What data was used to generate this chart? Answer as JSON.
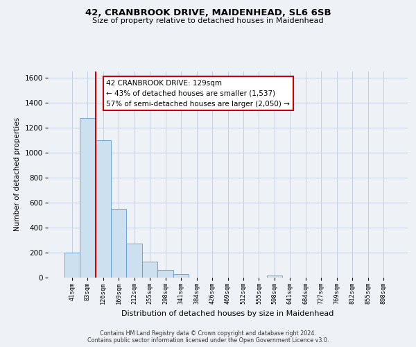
{
  "title": "42, CRANBROOK DRIVE, MAIDENHEAD, SL6 6SB",
  "subtitle": "Size of property relative to detached houses in Maidenhead",
  "xlabel": "Distribution of detached houses by size in Maidenhead",
  "ylabel": "Number of detached properties",
  "bin_labels": [
    "41sqm",
    "83sqm",
    "126sqm",
    "169sqm",
    "212sqm",
    "255sqm",
    "298sqm",
    "341sqm",
    "384sqm",
    "426sqm",
    "469sqm",
    "512sqm",
    "555sqm",
    "598sqm",
    "641sqm",
    "684sqm",
    "727sqm",
    "769sqm",
    "812sqm",
    "855sqm",
    "898sqm"
  ],
  "bar_heights": [
    200,
    1275,
    1100,
    550,
    270,
    125,
    60,
    30,
    0,
    0,
    0,
    0,
    0,
    15,
    0,
    0,
    0,
    0,
    0,
    0,
    0
  ],
  "bar_color": "#cde0f0",
  "bar_edge_color": "#5b9bd5",
  "red_line_color": "#cc0000",
  "annotation_text": "42 CRANBROOK DRIVE: 129sqm\n← 43% of detached houses are smaller (1,537)\n57% of semi-detached houses are larger (2,050) →",
  "annotation_box_color": "#ffffff",
  "annotation_box_edge_color": "#cc0000",
  "ylim": [
    0,
    1650
  ],
  "yticks": [
    0,
    200,
    400,
    600,
    800,
    1000,
    1200,
    1400,
    1600
  ],
  "background_color": "#eef2f7",
  "plot_bg_color": "#eef2f7",
  "footer_line1": "Contains HM Land Registry data © Crown copyright and database right 2024.",
  "footer_line2": "Contains public sector information licensed under the Open Government Licence v3.0."
}
